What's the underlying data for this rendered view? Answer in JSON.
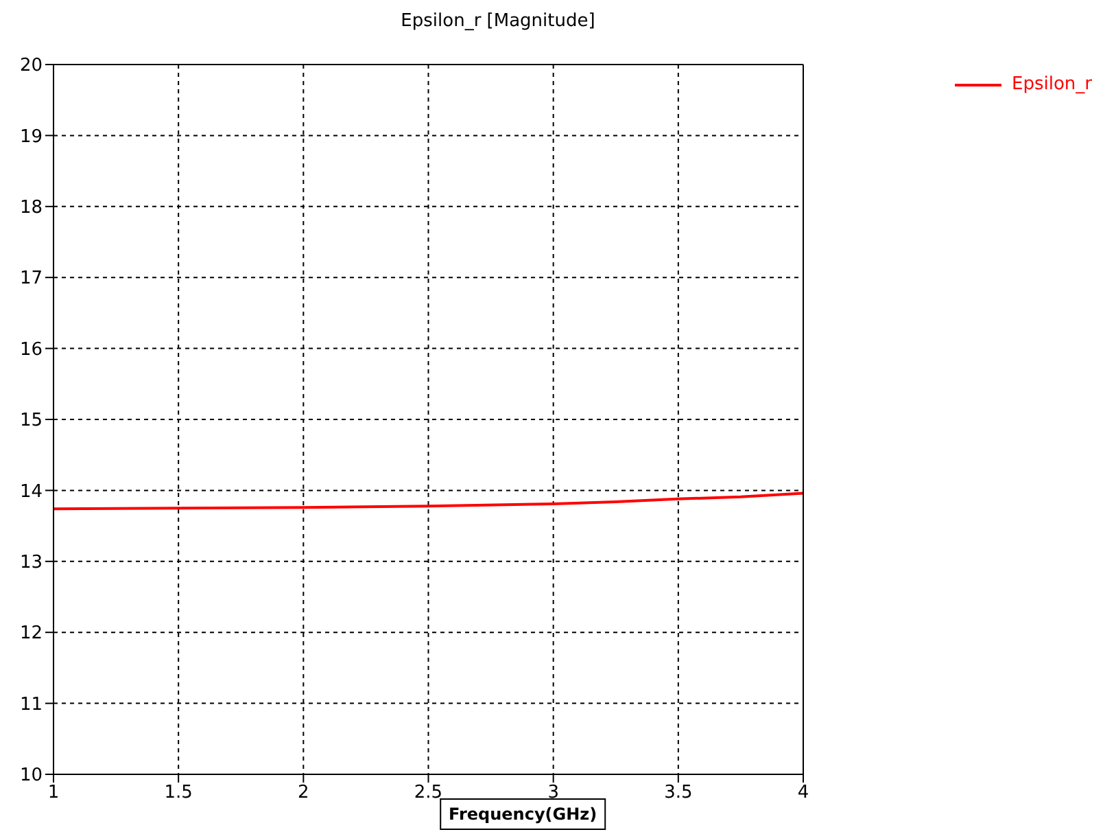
{
  "chart_data": {
    "type": "line",
    "title": "Epsilon_r [Magnitude]",
    "xlabel": "Frequency(GHz)",
    "x": [
      1,
      1.5,
      2,
      2.5,
      3,
      3.25,
      3.5,
      3.75,
      4
    ],
    "series": [
      {
        "name": "Epsilon_r",
        "color": "#ff0000",
        "values": [
          13.74,
          13.75,
          13.76,
          13.78,
          13.81,
          13.84,
          13.88,
          13.91,
          13.96
        ]
      }
    ],
    "xlim": [
      1,
      4
    ],
    "xticks": [
      1,
      1.5,
      2,
      2.5,
      3,
      3.5,
      4
    ],
    "ylim": [
      10,
      20
    ],
    "yticks": [
      10,
      11,
      12,
      13,
      14,
      15,
      16,
      17,
      18,
      19,
      20
    ],
    "grid": true,
    "legend": "top right",
    "marker": "none",
    "line_style": "solid"
  }
}
